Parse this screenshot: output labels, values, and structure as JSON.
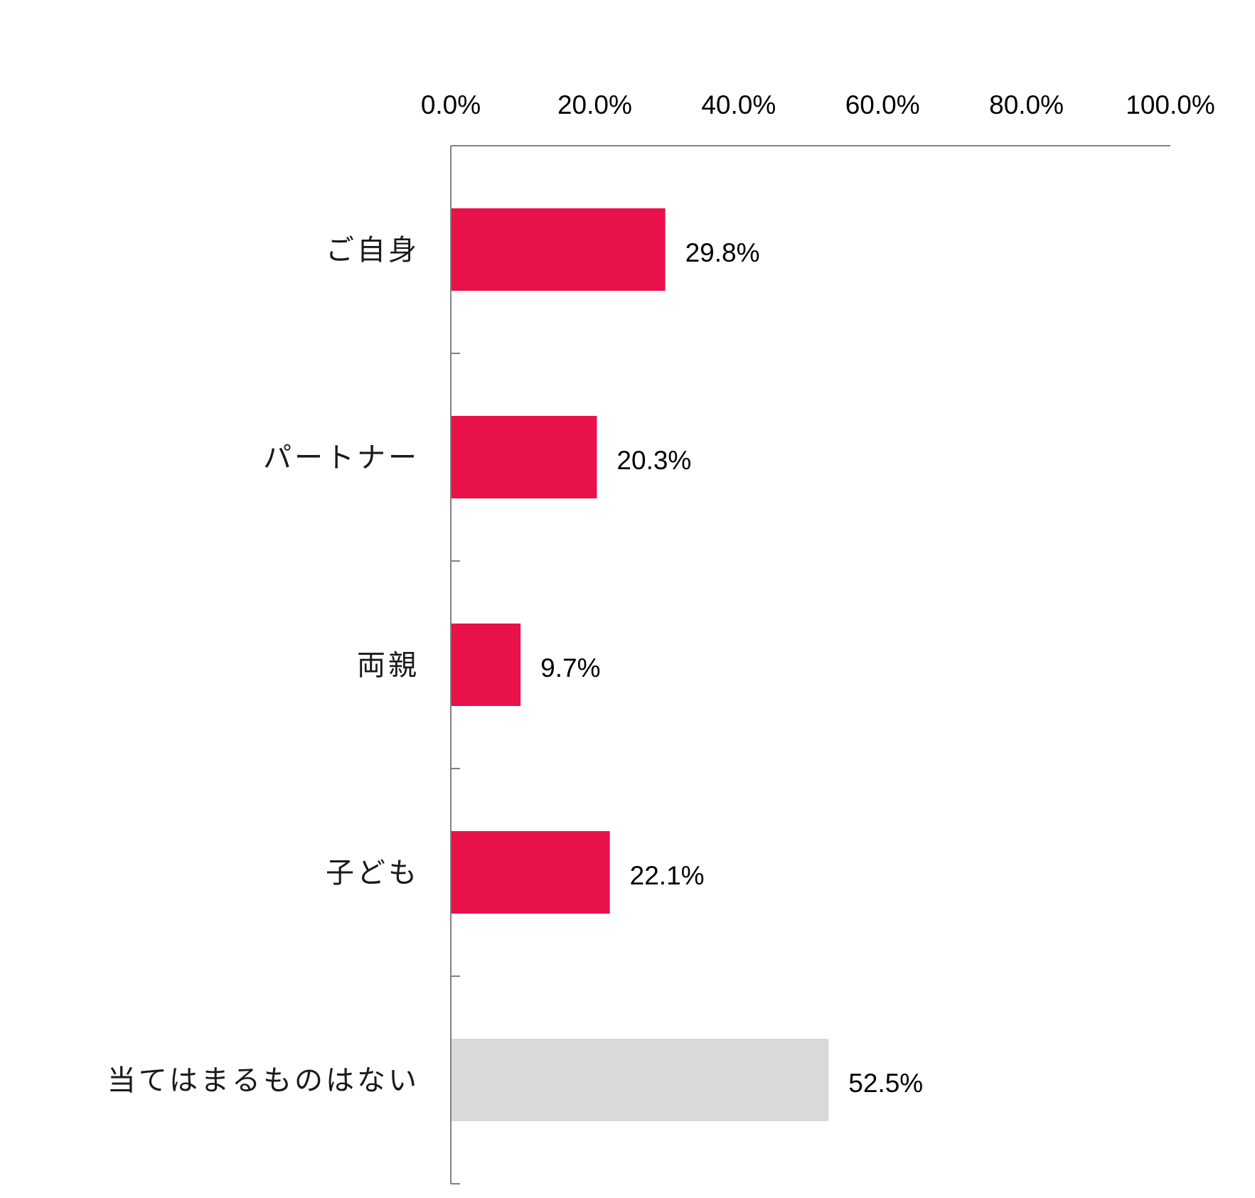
{
  "chart_data": {
    "type": "bar",
    "orientation": "horizontal",
    "categories": [
      "ご自身",
      "パートナー",
      "両親",
      "子ども",
      "当てはまるものはない"
    ],
    "values": [
      29.8,
      20.3,
      9.7,
      22.1,
      52.5
    ],
    "value_labels": [
      "29.8%",
      "20.3%",
      "9.7%",
      "22.1%",
      "52.5%"
    ],
    "bar_colors": [
      "#E8114A",
      "#E8114A",
      "#E8114A",
      "#E8114A",
      "#D9D9D9"
    ],
    "xlim": [
      0,
      100
    ],
    "x_ticks": [
      0,
      20,
      40,
      60,
      80,
      100
    ],
    "x_tick_labels": [
      "0.0%",
      "20.0%",
      "40.0%",
      "60.0%",
      "80.0%",
      "100.0%"
    ],
    "x_axis_position": "top",
    "grid": false,
    "legend": "none"
  }
}
